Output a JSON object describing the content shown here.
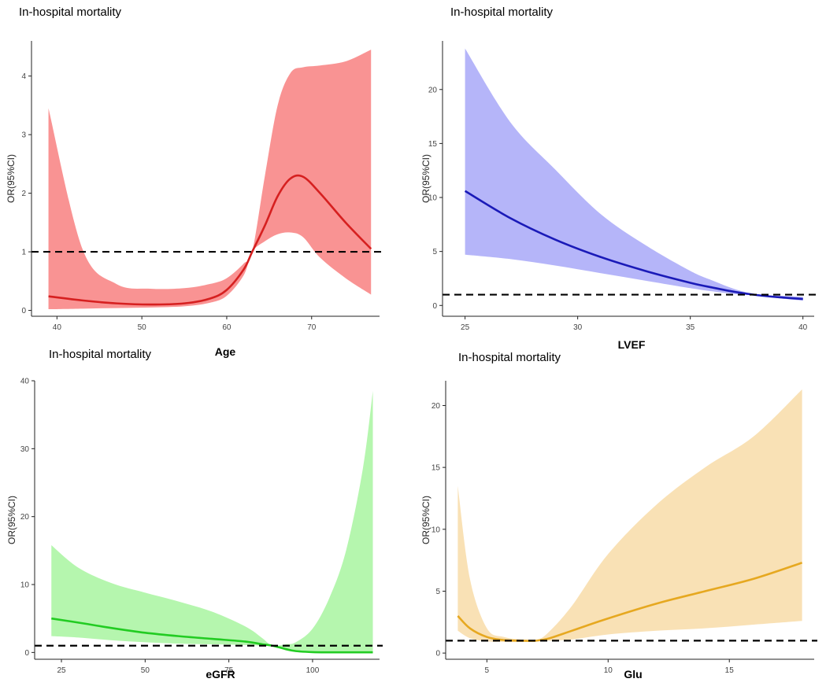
{
  "panel_title": "In-hospital mortality",
  "chart_data": [
    {
      "type": "line",
      "name": "Age",
      "title": "In-hospital mortality",
      "xlabel": "Age",
      "ylabel": "OR(95%CI)",
      "xlim": [
        37,
        78
      ],
      "ylim": [
        -0.1,
        4.6
      ],
      "xticks": [
        "40",
        "50",
        "60",
        "70"
      ],
      "yticks": [
        "0",
        "1",
        "2",
        "3",
        "4"
      ],
      "reference_line": 1,
      "color": "#d62020",
      "fill": "#f88080",
      "x": [
        39,
        43,
        47,
        51,
        55,
        58,
        60,
        62,
        63,
        64.5,
        66,
        67.5,
        69,
        71,
        74,
        77
      ],
      "or": [
        0.24,
        0.17,
        0.12,
        0.1,
        0.12,
        0.2,
        0.35,
        0.7,
        1.0,
        1.45,
        1.95,
        2.25,
        2.28,
        2.0,
        1.5,
        1.05
      ],
      "lower": [
        0.02,
        0.03,
        0.04,
        0.05,
        0.07,
        0.13,
        0.25,
        0.6,
        1.0,
        1.18,
        1.3,
        1.33,
        1.25,
        0.9,
        0.55,
        0.27
      ],
      "upper": [
        3.45,
        1.05,
        0.45,
        0.37,
        0.38,
        0.45,
        0.55,
        0.8,
        1.0,
        2.3,
        3.5,
        4.05,
        4.15,
        4.18,
        4.25,
        4.45
      ]
    },
    {
      "type": "line",
      "name": "LVEF",
      "title": "In-hospital mortality",
      "xlabel": "LVEF",
      "ylabel": "OR(95%CI)",
      "xlim": [
        24,
        40.5
      ],
      "ylim": [
        -1,
        24.5
      ],
      "xticks": [
        "25",
        "30",
        "35",
        "40"
      ],
      "yticks": [
        "0",
        "5",
        "10",
        "15",
        "20"
      ],
      "reference_line": 1,
      "color": "#1a1ab8",
      "fill": "#a8a8f8",
      "x": [
        25,
        27,
        29,
        31,
        33,
        35,
        36,
        37,
        38,
        39,
        40
      ],
      "or": [
        10.6,
        8.1,
        6.1,
        4.5,
        3.2,
        2.1,
        1.65,
        1.25,
        0.95,
        0.75,
        0.6
      ],
      "lower": [
        4.7,
        4.3,
        3.7,
        3.0,
        2.3,
        1.6,
        1.3,
        1.05,
        0.9,
        0.65,
        0.45
      ],
      "upper": [
        23.8,
        17.0,
        12.6,
        8.5,
        5.6,
        3.2,
        2.3,
        1.5,
        1.0,
        0.9,
        0.8
      ]
    },
    {
      "type": "line",
      "name": "eGFR",
      "title": "In-hospital mortality",
      "xlabel": "eGFR",
      "ylabel": "OR(95%CI)",
      "xlim": [
        17,
        120
      ],
      "ylim": [
        -1,
        40
      ],
      "xticks": [
        "25",
        "50",
        "75",
        "100"
      ],
      "yticks": [
        "0",
        "10",
        "20",
        "30",
        "40"
      ],
      "reference_line": 1,
      "color": "#22cc22",
      "fill": "#a8f4a0",
      "x": [
        22,
        30,
        40,
        50,
        60,
        70,
        80,
        85,
        88,
        92,
        95,
        100,
        105,
        110,
        115,
        118
      ],
      "or": [
        5.0,
        4.4,
        3.6,
        2.9,
        2.4,
        2.0,
        1.6,
        1.2,
        1.0,
        0.5,
        0.2,
        0.05,
        0.02,
        0.02,
        0.02,
        0.02
      ],
      "lower": [
        2.4,
        2.2,
        1.8,
        1.5,
        1.3,
        1.2,
        1.1,
        1.0,
        1.0,
        0.3,
        0.1,
        0.02,
        0.0,
        0.0,
        0.0,
        0.0
      ],
      "upper": [
        15.8,
        12.5,
        10.2,
        8.8,
        7.5,
        6.0,
        3.8,
        2.1,
        1.0,
        1.2,
        1.5,
        3.5,
        8.0,
        15.0,
        27.0,
        38.5
      ]
    },
    {
      "type": "line",
      "name": "Glu",
      "title": "In-hospital mortality",
      "xlabel": "Glu",
      "ylabel": "OR(95%CI)",
      "xlim": [
        3.3,
        18.5
      ],
      "ylim": [
        -0.5,
        22
      ],
      "xticks": [
        "5",
        "10",
        "15"
      ],
      "yticks": [
        "0",
        "5",
        "10",
        "15",
        "20"
      ],
      "reference_line": 1,
      "color": "#e6a820",
      "fill": "#f8dca8",
      "x": [
        3.8,
        4.3,
        5,
        5.7,
        6.4,
        7.0,
        7.5,
        8.5,
        10,
        12,
        14,
        16,
        18
      ],
      "or": [
        3.0,
        2.0,
        1.3,
        1.05,
        1.0,
        1.0,
        1.15,
        1.8,
        2.8,
        4.0,
        5.0,
        6.0,
        7.3
      ],
      "lower": [
        1.8,
        1.2,
        0.95,
        0.9,
        0.9,
        0.95,
        1.0,
        1.1,
        1.5,
        1.8,
        2.0,
        2.3,
        2.6
      ],
      "upper": [
        13.5,
        6.0,
        2.0,
        1.3,
        1.1,
        1.05,
        1.6,
        3.8,
        8.0,
        12.0,
        15.0,
        17.5,
        21.3
      ]
    }
  ]
}
